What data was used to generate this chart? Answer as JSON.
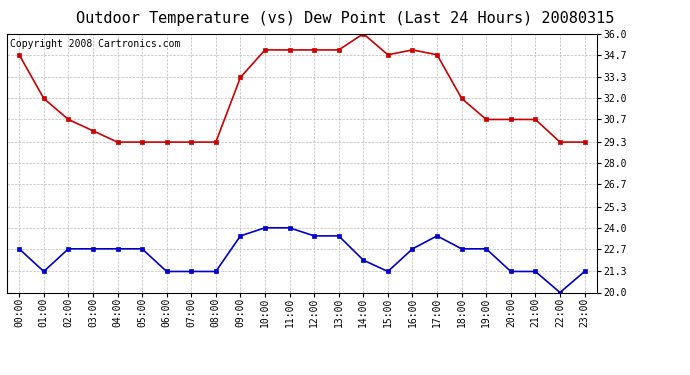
{
  "title": "Outdoor Temperature (vs) Dew Point (Last 24 Hours) 20080315",
  "copyright": "Copyright 2008 Cartronics.com",
  "x_labels": [
    "00:00",
    "01:00",
    "02:00",
    "03:00",
    "04:00",
    "05:00",
    "06:00",
    "07:00",
    "08:00",
    "09:00",
    "10:00",
    "11:00",
    "12:00",
    "13:00",
    "14:00",
    "15:00",
    "16:00",
    "17:00",
    "18:00",
    "19:00",
    "20:00",
    "21:00",
    "22:00",
    "23:00"
  ],
  "temp_data": [
    34.7,
    32.0,
    30.7,
    30.0,
    29.3,
    29.3,
    29.3,
    29.3,
    29.3,
    33.3,
    35.0,
    35.0,
    35.0,
    35.0,
    36.0,
    34.7,
    35.0,
    34.7,
    32.0,
    30.7,
    30.7,
    30.7,
    29.3,
    29.3
  ],
  "dew_data": [
    22.7,
    21.3,
    22.7,
    22.7,
    22.7,
    22.7,
    21.3,
    21.3,
    21.3,
    23.5,
    24.0,
    24.0,
    23.5,
    23.5,
    22.0,
    21.3,
    22.7,
    23.5,
    22.7,
    22.7,
    21.3,
    21.3,
    20.0,
    21.3
  ],
  "temp_color": "#cc0000",
  "dew_color": "#0000cc",
  "bg_color": "#ffffff",
  "grid_color": "#bbbbbb",
  "ylim_min": 20.0,
  "ylim_max": 36.0,
  "y_ticks": [
    20.0,
    21.3,
    22.7,
    24.0,
    25.3,
    26.7,
    28.0,
    29.3,
    30.7,
    32.0,
    33.3,
    34.7,
    36.0
  ],
  "title_fontsize": 11,
  "copyright_fontsize": 7,
  "tick_fontsize": 7,
  "marker": "s",
  "marker_size": 3,
  "line_width": 1.2
}
